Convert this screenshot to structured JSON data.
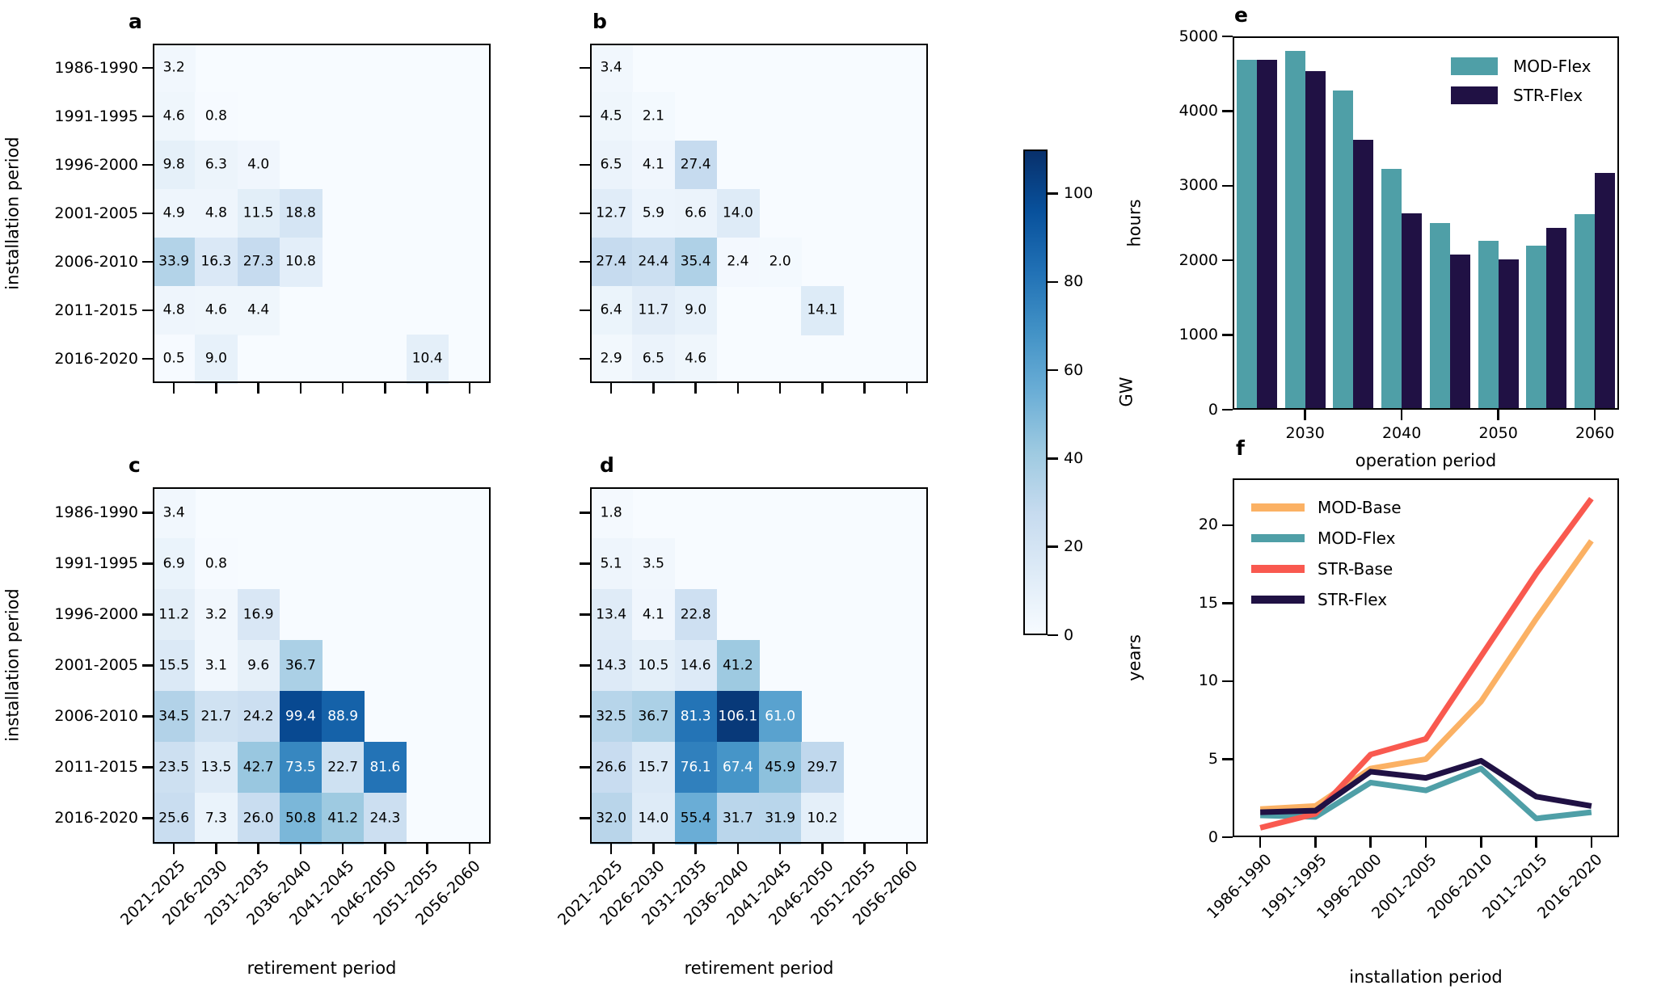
{
  "figure": {
    "background": "#ffffff",
    "panel_letters": [
      "a",
      "b",
      "c",
      "d",
      "e",
      "f"
    ]
  },
  "colorbar": {
    "label": "GW",
    "ticks": [
      0,
      20,
      40,
      60,
      80,
      100
    ],
    "vmin": 0,
    "vmax": 110,
    "colormap": "Blues"
  },
  "colors": {
    "mod_base": "#FBB164",
    "mod_flex": "#4F9FA7",
    "str_base": "#F9594F",
    "str_flex": "#201144",
    "heatmap_low": "#f7fbff",
    "heatmap_high": "#08306b"
  },
  "chart_data": [
    {
      "id": "a",
      "letter": "a",
      "type": "heatmap",
      "xlabel": "retirement period",
      "ylabel": "installation period",
      "unit": "GW",
      "vmin": 0,
      "vmax": 110,
      "rows": [
        "1986-1990",
        "1991-1995",
        "1996-2000",
        "2001-2005",
        "2006-2010",
        "2011-2015",
        "2016-2020"
      ],
      "cols": [
        "2021-2025",
        "2026-2030",
        "2031-2035",
        "2036-2040",
        "2041-2045",
        "2046-2050",
        "2051-2055",
        "2056-2060"
      ],
      "values": [
        [
          3.2,
          null,
          null,
          null,
          null,
          null,
          null,
          null
        ],
        [
          4.6,
          0.8,
          null,
          null,
          null,
          null,
          null,
          null
        ],
        [
          9.8,
          6.3,
          4.0,
          null,
          null,
          null,
          null,
          null
        ],
        [
          4.9,
          4.8,
          11.5,
          18.8,
          null,
          null,
          null,
          null
        ],
        [
          33.9,
          16.3,
          27.3,
          10.8,
          null,
          null,
          null,
          null
        ],
        [
          4.8,
          4.6,
          4.4,
          null,
          null,
          null,
          null,
          null
        ],
        [
          0.5,
          9.0,
          null,
          null,
          null,
          null,
          10.4,
          null
        ]
      ]
    },
    {
      "id": "b",
      "letter": "b",
      "type": "heatmap",
      "xlabel": "retirement period",
      "ylabel": "installation period",
      "unit": "GW",
      "vmin": 0,
      "vmax": 110,
      "rows": [
        "1986-1990",
        "1991-1995",
        "1996-2000",
        "2001-2005",
        "2006-2010",
        "2011-2015",
        "2016-2020"
      ],
      "cols": [
        "2021-2025",
        "2026-2030",
        "2031-2035",
        "2036-2040",
        "2041-2045",
        "2046-2050",
        "2051-2055",
        "2056-2060"
      ],
      "values": [
        [
          3.4,
          null,
          null,
          null,
          null,
          null,
          null,
          null
        ],
        [
          4.5,
          2.1,
          null,
          null,
          null,
          null,
          null,
          null
        ],
        [
          6.5,
          4.1,
          27.4,
          null,
          null,
          null,
          null,
          null
        ],
        [
          12.7,
          5.9,
          6.6,
          14.0,
          null,
          null,
          null,
          null
        ],
        [
          27.4,
          24.4,
          35.4,
          2.4,
          2.0,
          null,
          null,
          null
        ],
        [
          6.4,
          11.7,
          9.0,
          null,
          null,
          14.1,
          null,
          null
        ],
        [
          2.9,
          6.5,
          4.6,
          null,
          null,
          null,
          null,
          null
        ]
      ]
    },
    {
      "id": "c",
      "letter": "c",
      "type": "heatmap",
      "xlabel": "retirement period",
      "ylabel": "installation period",
      "unit": "GW",
      "vmin": 0,
      "vmax": 110,
      "rows": [
        "1986-1990",
        "1991-1995",
        "1996-2000",
        "2001-2005",
        "2006-2010",
        "2011-2015",
        "2016-2020"
      ],
      "cols": [
        "2021-2025",
        "2026-2030",
        "2031-2035",
        "2036-2040",
        "2041-2045",
        "2046-2050",
        "2051-2055",
        "2056-2060"
      ],
      "values": [
        [
          3.4,
          null,
          null,
          null,
          null,
          null,
          null,
          null
        ],
        [
          6.9,
          0.8,
          null,
          null,
          null,
          null,
          null,
          null
        ],
        [
          11.2,
          3.2,
          16.9,
          null,
          null,
          null,
          null,
          null
        ],
        [
          15.5,
          3.1,
          9.6,
          36.7,
          null,
          null,
          null,
          null
        ],
        [
          34.5,
          21.7,
          24.2,
          99.4,
          88.9,
          null,
          null,
          null
        ],
        [
          23.5,
          13.5,
          42.7,
          73.5,
          22.7,
          81.6,
          null,
          null
        ],
        [
          25.6,
          7.3,
          26.0,
          50.8,
          41.2,
          24.3,
          null,
          null
        ]
      ]
    },
    {
      "id": "d",
      "letter": "d",
      "type": "heatmap",
      "xlabel": "retirement period",
      "ylabel": "installation period",
      "unit": "GW",
      "vmin": 0,
      "vmax": 110,
      "rows": [
        "1986-1990",
        "1991-1995",
        "1996-2000",
        "2001-2005",
        "2006-2010",
        "2011-2015",
        "2016-2020"
      ],
      "cols": [
        "2021-2025",
        "2026-2030",
        "2031-2035",
        "2036-2040",
        "2041-2045",
        "2046-2050",
        "2051-2055",
        "2056-2060"
      ],
      "values": [
        [
          1.8,
          null,
          null,
          null,
          null,
          null,
          null,
          null
        ],
        [
          5.1,
          3.5,
          null,
          null,
          null,
          null,
          null,
          null
        ],
        [
          13.4,
          4.1,
          22.8,
          null,
          null,
          null,
          null,
          null
        ],
        [
          14.3,
          10.5,
          14.6,
          41.2,
          null,
          null,
          null,
          null
        ],
        [
          32.5,
          36.7,
          81.3,
          106.1,
          61.0,
          null,
          null,
          null
        ],
        [
          26.6,
          15.7,
          76.1,
          67.4,
          45.9,
          29.7,
          null,
          null
        ],
        [
          32.0,
          14.0,
          55.4,
          31.7,
          31.9,
          10.2,
          null,
          null
        ]
      ]
    },
    {
      "id": "e",
      "letter": "e",
      "type": "bar",
      "xlabel": "operation period",
      "ylabel": "hours",
      "categories": [
        "2025",
        "2030",
        "2035",
        "2040",
        "2045",
        "2050",
        "2055",
        "2060"
      ],
      "visible_xticks": [
        "2030",
        "2040",
        "2050",
        "2060"
      ],
      "ylim": [
        0,
        5000
      ],
      "yticks": [
        0,
        1000,
        2000,
        3000,
        4000,
        5000
      ],
      "legend_position": "upper right",
      "series": [
        {
          "name": "MOD-Flex",
          "color": "#4F9FA7",
          "values": [
            4690,
            4810,
            4270,
            3220,
            2500,
            2260,
            2200,
            2620
          ]
        },
        {
          "name": "STR-Flex",
          "color": "#201144",
          "values": [
            4690,
            4530,
            3610,
            2630,
            2080,
            2010,
            2440,
            3170
          ]
        }
      ]
    },
    {
      "id": "f",
      "letter": "f",
      "type": "line",
      "xlabel": "installation period",
      "ylabel": "years",
      "categories": [
        "1986-1990",
        "1991-1995",
        "1996-2000",
        "2001-2005",
        "2006-2010",
        "2011-2015",
        "2016-2020"
      ],
      "ylim": [
        0,
        23
      ],
      "yticks": [
        0,
        5,
        10,
        15,
        20
      ],
      "legend_position": "upper left",
      "series": [
        {
          "name": "MOD-Base",
          "color": "#FBB164",
          "values": [
            1.8,
            2.0,
            4.4,
            5.0,
            8.7,
            14.0,
            19.0
          ]
        },
        {
          "name": "MOD-Flex",
          "color": "#4F9FA7",
          "values": [
            1.4,
            1.3,
            3.5,
            3.0,
            4.4,
            1.2,
            1.6
          ]
        },
        {
          "name": "STR-Base",
          "color": "#F9594F",
          "values": [
            0.6,
            1.5,
            5.3,
            6.3,
            11.6,
            16.9,
            21.7
          ]
        },
        {
          "name": "STR-Flex",
          "color": "#201144",
          "values": [
            1.6,
            1.7,
            4.2,
            3.8,
            4.9,
            2.6,
            2.0
          ]
        }
      ]
    }
  ]
}
